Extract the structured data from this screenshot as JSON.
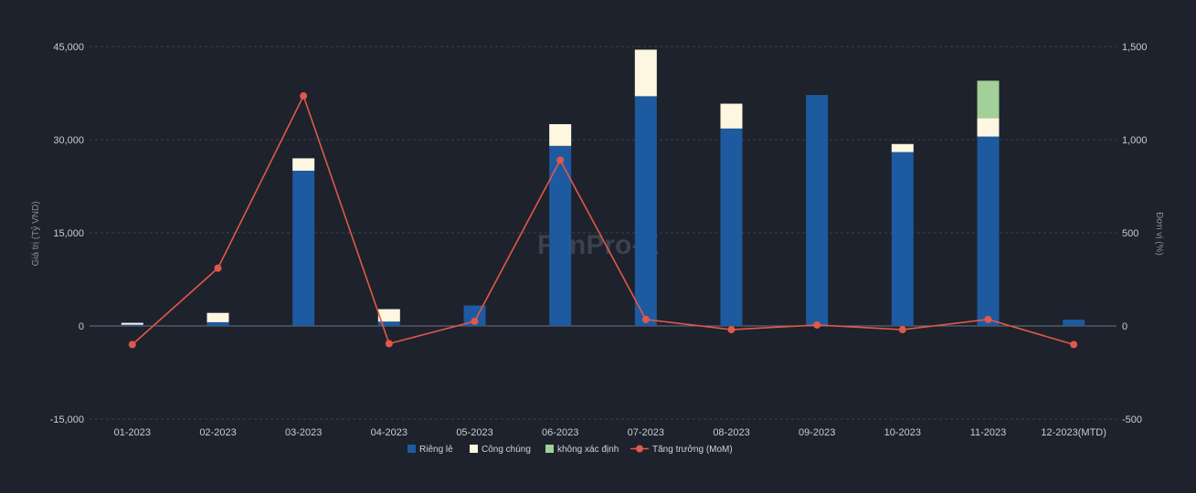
{
  "chart_data": {
    "type": "bar",
    "stacked": true,
    "categories": [
      "01-2023",
      "02-2023",
      "03-2023",
      "04-2023",
      "05-2023",
      "06-2023",
      "07-2023",
      "08-2023",
      "09-2023",
      "10-2023",
      "11-2023",
      "12-2023(MTD)"
    ],
    "series": [
      {
        "name": "Riêng lẻ",
        "type": "bar",
        "axis": "left",
        "color": "#1d5aa0",
        "values": [
          200,
          600,
          25000,
          700,
          3300,
          29000,
          37000,
          31800,
          37200,
          28000,
          30500,
          1000
        ]
      },
      {
        "name": "Công chúng",
        "type": "bar",
        "axis": "left",
        "color": "#fdf6e0",
        "values": [
          300,
          1500,
          2000,
          2000,
          0,
          3500,
          7500,
          4000,
          0,
          1300,
          3000,
          0
        ]
      },
      {
        "name": "không xác định",
        "type": "bar",
        "axis": "left",
        "color": "#a3cf98",
        "values": [
          0,
          0,
          0,
          0,
          0,
          0,
          0,
          0,
          0,
          0,
          6000,
          0
        ]
      },
      {
        "name": "Tăng trưởng (MoM)",
        "type": "line",
        "axis": "right",
        "color": "#e0584a",
        "values": [
          -100,
          310,
          1235,
          -95,
          25,
          890,
          35,
          -20,
          5,
          -20,
          35,
          -100
        ]
      }
    ],
    "ylabel": "Giá trị (Tỷ VND)",
    "y2label": "Đơn vị (%)",
    "ylim": [
      -15000,
      45000
    ],
    "y2lim": [
      -500,
      1500
    ],
    "yticks": [
      "-15,000",
      "0",
      "15,000",
      "30,000",
      "45,000"
    ],
    "y2ticks": [
      "-500",
      "0",
      "500",
      "1,000",
      "1,500"
    ],
    "grid": true,
    "legend_position": "bottom-center"
  },
  "watermark": "FiinPro-X"
}
